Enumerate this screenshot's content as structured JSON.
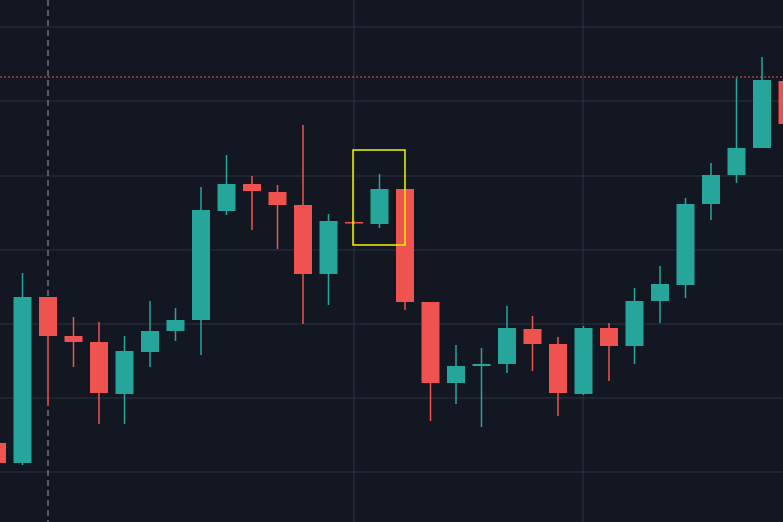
{
  "chart_data": {
    "type": "candlestick",
    "open": [
      79,
      59,
      225,
      186,
      180,
      128,
      170,
      191,
      202,
      311,
      338,
      330,
      317,
      248,
      300,
      298,
      333,
      220,
      139,
      156,
      158,
      193,
      178,
      128,
      194,
      176,
      221,
      237,
      318,
      347,
      374,
      441
    ],
    "high": [
      79,
      249,
      225,
      205,
      200,
      186,
      221,
      214,
      335,
      367,
      346,
      337,
      397,
      308,
      301,
      348,
      333,
      220,
      177,
      174,
      216,
      206,
      185,
      196,
      199,
      234,
      256,
      324,
      359,
      444,
      465,
      442
    ],
    "low": [
      59,
      57,
      117,
      155,
      98,
      98,
      155,
      181,
      167,
      307,
      292,
      273,
      198,
      217,
      298,
      294,
      212,
      101,
      118,
      95,
      149,
      151,
      106,
      127,
      141,
      158,
      199,
      224,
      302,
      339,
      374,
      398
    ],
    "close": [
      59,
      225,
      186,
      180,
      129,
      171,
      191,
      202,
      312,
      338,
      331,
      317,
      248,
      301,
      299,
      333,
      220,
      139,
      156,
      158,
      194,
      178,
      129,
      194,
      176,
      221,
      238,
      318,
      347,
      374,
      442,
      398
    ],
    "up_color": "#26a69a",
    "down_color": "#ef5350",
    "ylim": [
      0,
      522
    ],
    "yticks": [
      50,
      124,
      198,
      272,
      346,
      421,
      495
    ],
    "grid": true,
    "price_line": 445,
    "price_line_color": "#ef5350"
  }
}
